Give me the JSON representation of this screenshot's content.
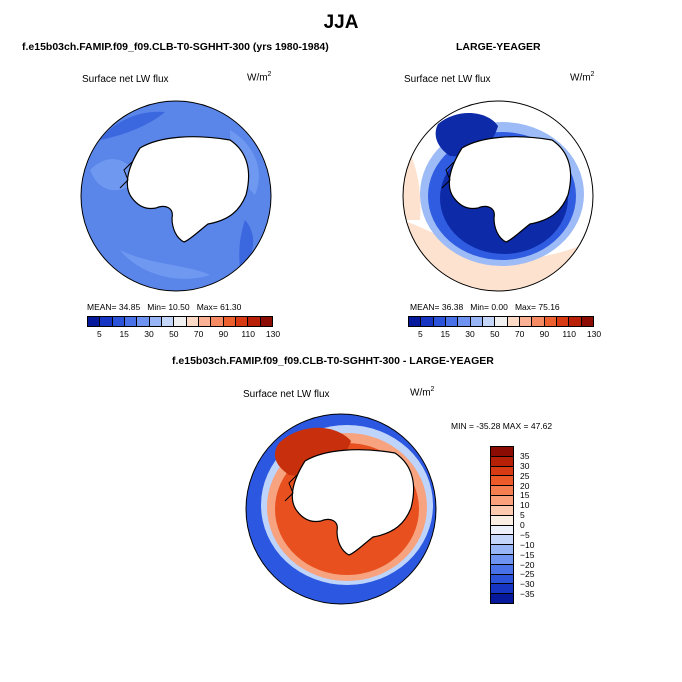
{
  "figure": {
    "title": "JJA"
  },
  "panels": {
    "model": {
      "run_title": "f.e15b03ch.FAMIP.f09_f09.CLB-T0-SGHHT-300 (yrs 1980-1984)",
      "field_label": "Surface net LW flux",
      "units_label": "W/m",
      "units_exp": "2",
      "stats": {
        "mean_label": "MEAN=",
        "mean": "34.85",
        "min_label": "Min=",
        "min": "10.50",
        "max_label": "Max=",
        "max": "61.30"
      }
    },
    "obs": {
      "run_title": "LARGE-YEAGER",
      "field_label": "Surface net LW flux",
      "units_label": "W/m",
      "units_exp": "2",
      "stats": {
        "mean_label": "MEAN=",
        "mean": "36.38",
        "min_label": "Min=",
        "min": "0.00",
        "max_label": "Max=",
        "max": "75.16"
      }
    },
    "diff": {
      "run_title": "f.e15b03ch.FAMIP.f09_f09.CLB-T0-SGHHT-300 - LARGE-YEAGER",
      "field_label": "Surface net LW flux",
      "units_label": "W/m",
      "units_exp": "2",
      "minmax": "MIN = -35.28 MAX = 47.62"
    }
  },
  "colorbars": {
    "absolute": {
      "ticks": [
        "5",
        "15",
        "30",
        "50",
        "70",
        "90",
        "110",
        "130"
      ],
      "colors": [
        "#05199a",
        "#1535c2",
        "#2a53d9",
        "#4a72e8",
        "#6e93f0",
        "#98b5f6",
        "#c4d6fa",
        "#f0f0f0",
        "#fddac6",
        "#fbb294",
        "#f58a63",
        "#ec6030",
        "#d83a14",
        "#b82108",
        "#8a0c03"
      ]
    },
    "difference": {
      "ticks": [
        "35",
        "30",
        "25",
        "20",
        "15",
        "10",
        "5",
        "0",
        "−5",
        "−10",
        "−15",
        "−20",
        "−25",
        "−30",
        "−35"
      ],
      "colors": [
        "#8a0c03",
        "#b52006",
        "#d83a14",
        "#ec5a2a",
        "#f57e50",
        "#fba27c",
        "#fdcab0",
        "#fbeee3",
        "#eef1fb",
        "#c4d6fa",
        "#98b5f6",
        "#6e93f0",
        "#4a72e8",
        "#2a53d9",
        "#1535c2",
        "#05199a"
      ]
    }
  },
  "map_colors": {
    "ocean_model": "#5a86ea",
    "ocean_model_light": "#6f98f0",
    "ocean_model_dark": "#3c68df",
    "land": "#ffffff",
    "obs_deep": "#0d2aa8",
    "obs_mid": "#2f5ce0",
    "obs_light": "#9dbbf6",
    "obs_pale": "#fde2cf",
    "diff_red": "#e8501f",
    "diff_darkred": "#c82f0c",
    "diff_orange": "#f7a37f",
    "diff_blue": "#2c57e0",
    "diff_paleblue": "#bfd4fa"
  }
}
